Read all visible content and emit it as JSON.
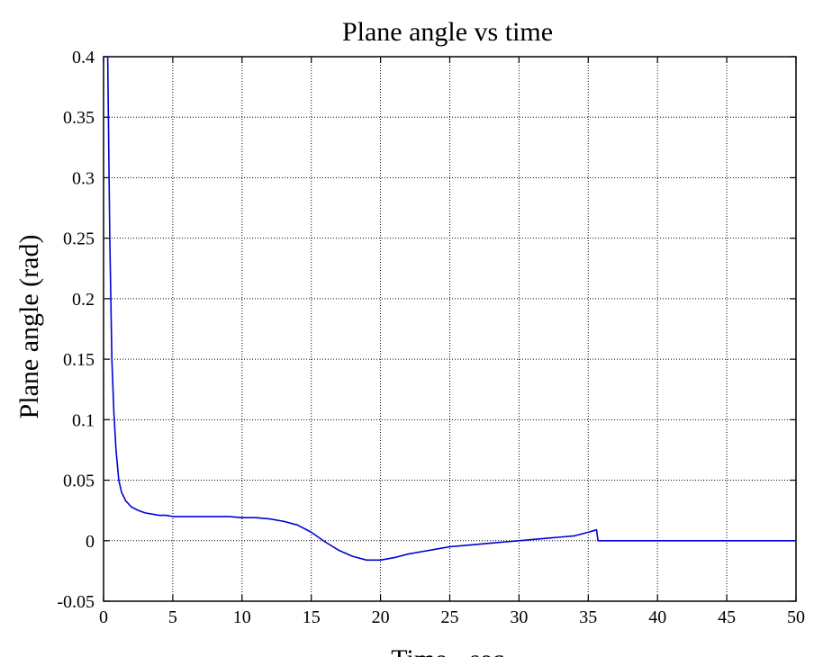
{
  "chart_data": {
    "type": "line",
    "title": "Plane angle vs time",
    "xlabel": "Time - sec",
    "ylabel": "Plane angle (rad)",
    "xlim": [
      0,
      50
    ],
    "ylim": [
      -0.05,
      0.4
    ],
    "xticks": [
      "0",
      "5",
      "10",
      "15",
      "20",
      "25",
      "30",
      "35",
      "40",
      "45",
      "50"
    ],
    "yticks": [
      "-0.05",
      "0",
      "0.05",
      "0.1",
      "0.15",
      "0.2",
      "0.25",
      "0.3",
      "0.35",
      "0.4"
    ],
    "grid": true,
    "line_color": "#0000d6",
    "series": [
      {
        "x": [
          0.3,
          0.45,
          0.6,
          0.75,
          0.9,
          1.1,
          1.3,
          1.6,
          2.0,
          2.5,
          3.0,
          3.5,
          4.0,
          4.5,
          5.0,
          6,
          7,
          8,
          9,
          10,
          11,
          12,
          13,
          14,
          15,
          16,
          17,
          18,
          19,
          20,
          21,
          22,
          23,
          24,
          25,
          26,
          27,
          28,
          29,
          30,
          31,
          32,
          33,
          34,
          35,
          35.6,
          35.7,
          36,
          40,
          45,
          50
        ],
        "y": [
          0.4,
          0.25,
          0.15,
          0.105,
          0.075,
          0.05,
          0.04,
          0.033,
          0.028,
          0.025,
          0.023,
          0.022,
          0.021,
          0.021,
          0.02,
          0.02,
          0.02,
          0.02,
          0.02,
          0.019,
          0.019,
          0.018,
          0.016,
          0.013,
          0.007,
          -0.001,
          -0.008,
          -0.013,
          -0.016,
          -0.016,
          -0.014,
          -0.011,
          -0.009,
          -0.007,
          -0.005,
          -0.004,
          -0.003,
          -0.002,
          -0.001,
          0.0,
          0.001,
          0.002,
          0.003,
          0.004,
          0.007,
          0.009,
          0.0,
          0.0,
          0.0,
          0.0,
          0.0
        ]
      }
    ]
  }
}
